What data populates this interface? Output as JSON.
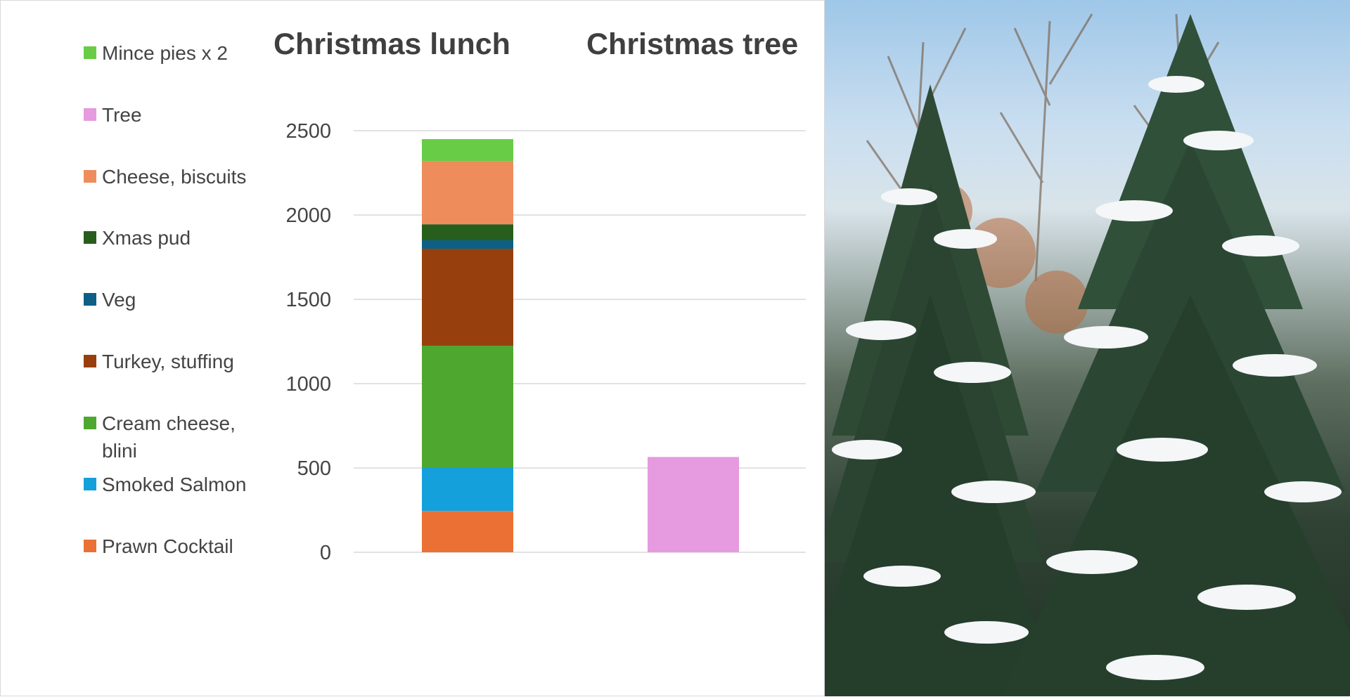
{
  "colors": {
    "prawn": "#EB7033",
    "salmon": "#14A0DB",
    "cream": "#4EA72E",
    "turkey": "#97400D",
    "veg": "#0E5F85",
    "pud": "#275E1D",
    "cheese": "#EE8C5C",
    "mince": "#68CC46",
    "tree": "#E69ADF",
    "grid": "#d9d9d9"
  },
  "legend": [
    {
      "label": "Mince pies x 2",
      "color_key": "mince"
    },
    {
      "label": "Tree",
      "color_key": "tree"
    },
    {
      "label": "Cheese, biscuits",
      "color_key": "cheese"
    },
    {
      "label": "Xmas pud",
      "color_key": "pud"
    },
    {
      "label": "Veg",
      "color_key": "veg"
    },
    {
      "label": "Turkey, stuffing",
      "color_key": "turkey"
    },
    {
      "label": "Cream cheese, blini",
      "color_key": "cream"
    },
    {
      "label": "Smoked Salmon",
      "color_key": "salmon"
    },
    {
      "label": "Prawn Cocktail",
      "color_key": "prawn"
    }
  ],
  "chart_data": {
    "type": "bar",
    "stacked": true,
    "categories": [
      "Christmas lunch",
      "Christmas tree"
    ],
    "ylim": [
      0,
      2500
    ],
    "yticks": [
      0,
      500,
      1000,
      1500,
      2000,
      2500
    ],
    "grid": true,
    "legend_position": "left",
    "series": [
      {
        "name": "Prawn Cocktail",
        "color_key": "prawn",
        "values": [
          245,
          0
        ]
      },
      {
        "name": "Smoked Salmon",
        "color_key": "salmon",
        "values": [
          255,
          0
        ]
      },
      {
        "name": "Cream cheese, blini",
        "color_key": "cream",
        "values": [
          725,
          0
        ]
      },
      {
        "name": "Turkey, stuffing",
        "color_key": "turkey",
        "values": [
          575,
          0
        ]
      },
      {
        "name": "Veg",
        "color_key": "veg",
        "values": [
          50,
          0
        ]
      },
      {
        "name": "Xmas pud",
        "color_key": "pud",
        "values": [
          95,
          0
        ]
      },
      {
        "name": "Cheese, biscuits",
        "color_key": "cheese",
        "values": [
          375,
          0
        ]
      },
      {
        "name": "Mince pies x 2",
        "color_key": "mince",
        "values": [
          130,
          0
        ]
      },
      {
        "name": "Tree",
        "color_key": "tree",
        "values": [
          0,
          565
        ]
      }
    ]
  }
}
